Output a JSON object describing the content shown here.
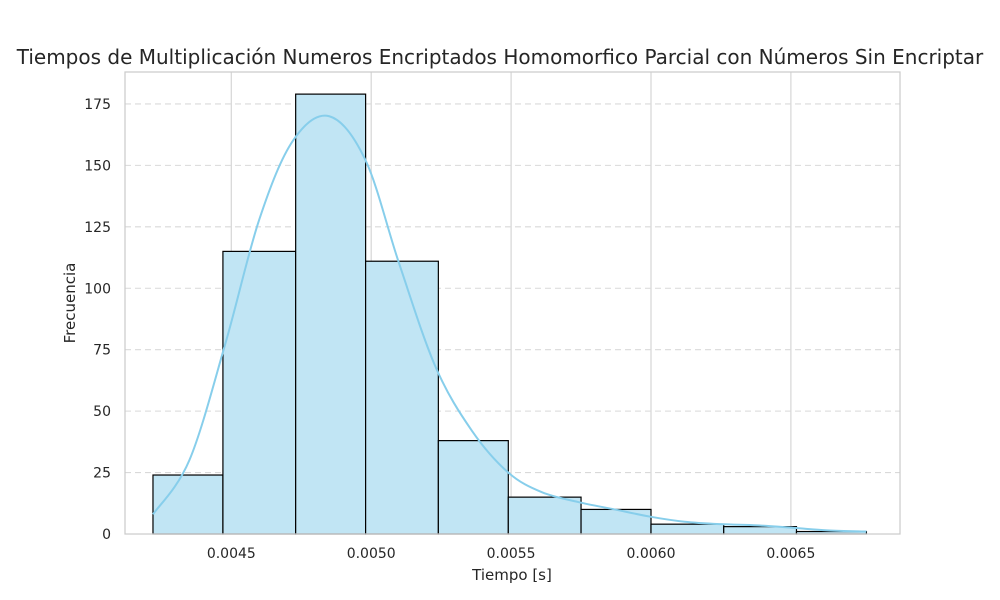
{
  "chart_data": {
    "type": "bar",
    "title": "Tiempos de Multiplicación Numeros Encriptados Homomorfico Parcial con Números Sin Encriptar",
    "xlabel": "Tiempo [s]",
    "ylabel": "Frecuencia",
    "xlim": [
      0.00412,
      0.00689
    ],
    "ylim": [
      0,
      188
    ],
    "x_ticks": [
      0.0045,
      0.005,
      0.0055,
      0.006,
      0.0065
    ],
    "x_tick_labels": [
      "0.0045",
      "0.0050",
      "0.0055",
      "0.0060",
      "0.0065"
    ],
    "y_ticks": [
      0,
      25,
      50,
      75,
      100,
      125,
      150,
      175
    ],
    "y_tick_labels": [
      "0",
      "25",
      "50",
      "75",
      "100",
      "125",
      "150",
      "175"
    ],
    "bins": [
      {
        "start": 0.00422,
        "end": 0.00447,
        "count": 24
      },
      {
        "start": 0.00447,
        "end": 0.00473,
        "count": 115
      },
      {
        "start": 0.00473,
        "end": 0.00498,
        "count": 179
      },
      {
        "start": 0.00498,
        "end": 0.00524,
        "count": 111
      },
      {
        "start": 0.00524,
        "end": 0.00549,
        "count": 38
      },
      {
        "start": 0.00549,
        "end": 0.00575,
        "count": 15
      },
      {
        "start": 0.00575,
        "end": 0.006,
        "count": 10
      },
      {
        "start": 0.006,
        "end": 0.00626,
        "count": 4
      },
      {
        "start": 0.00626,
        "end": 0.00652,
        "count": 3
      },
      {
        "start": 0.00652,
        "end": 0.00677,
        "count": 1
      }
    ],
    "kde": {
      "x": [
        0.00422,
        0.00435,
        0.00448,
        0.0046,
        0.00472,
        0.00485,
        0.00498,
        0.0051,
        0.00523,
        0.00536,
        0.00549,
        0.00561,
        0.00574,
        0.00587,
        0.006,
        0.00612,
        0.00625,
        0.00638,
        0.00651,
        0.00663,
        0.00677
      ],
      "y": [
        8,
        30,
        78,
        128,
        160,
        170,
        152,
        110,
        68,
        42,
        25,
        17,
        13,
        10,
        7,
        5,
        4,
        3.5,
        2.5,
        1.5,
        1
      ]
    },
    "grid": true,
    "legend": "none",
    "colors": {
      "bar_fill": "#c1e5f4",
      "bar_edge": "#000000",
      "kde_line": "#87ceeb",
      "grid": "#d9d9d9",
      "axes_edge": "#cccccc",
      "text": "#262626"
    }
  }
}
